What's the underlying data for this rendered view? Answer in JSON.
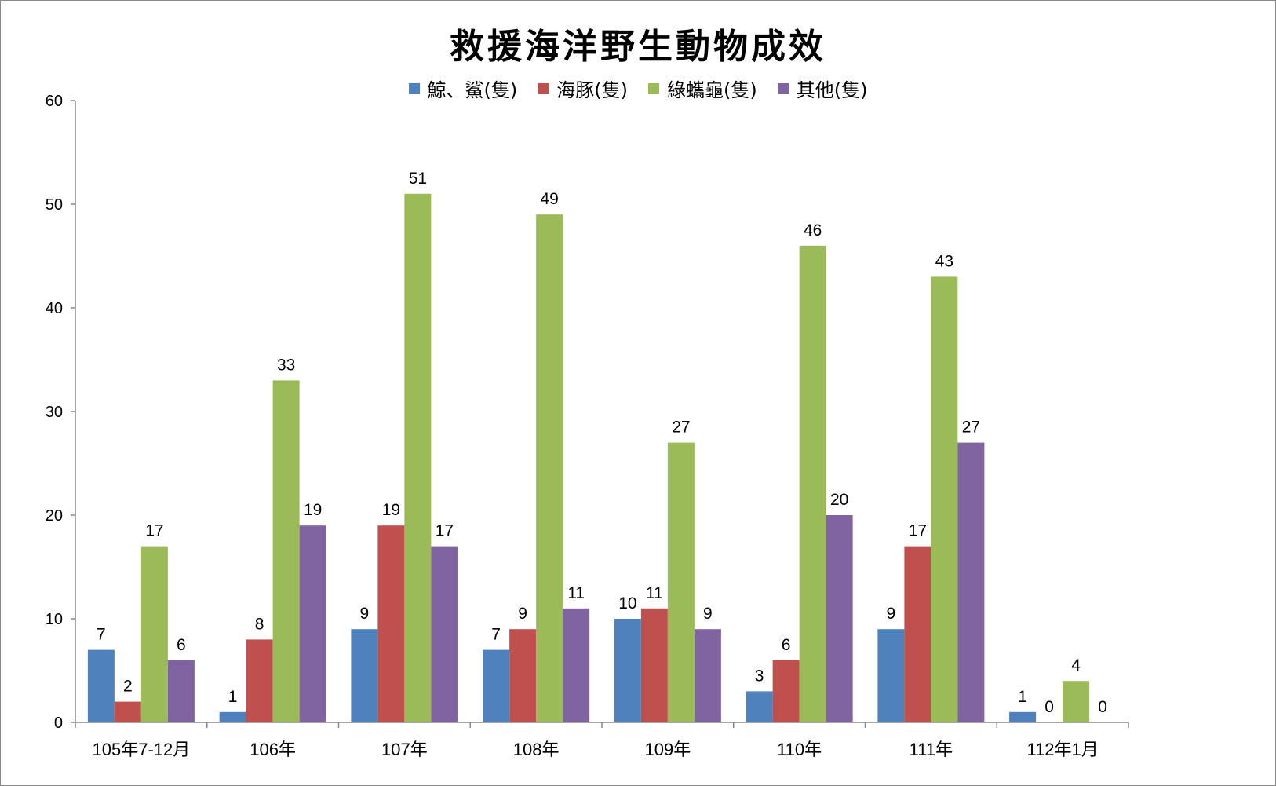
{
  "chart_data": {
    "type": "bar",
    "title": "救援海洋野生動物成效",
    "xlabel": "",
    "ylabel": "",
    "ylim": [
      0,
      60
    ],
    "yticks": [
      0,
      10,
      20,
      30,
      40,
      50,
      60
    ],
    "legend_position": "top",
    "grid": false,
    "categories": [
      "105年7-12月",
      "106年",
      "107年",
      "108年",
      "109年",
      "110年",
      "111年",
      "112年1月"
    ],
    "series": [
      {
        "name": "鯨、鯊(隻)",
        "color": "#4F81BD",
        "values": [
          7,
          1,
          9,
          7,
          10,
          3,
          9,
          1
        ]
      },
      {
        "name": "海豚(隻)",
        "color": "#C0504D",
        "values": [
          2,
          8,
          19,
          9,
          11,
          6,
          17,
          0
        ]
      },
      {
        "name": "綠蠵龜(隻)",
        "color": "#9BBB59",
        "values": [
          17,
          33,
          51,
          49,
          27,
          46,
          43,
          4
        ]
      },
      {
        "name": "其他(隻)",
        "color": "#8064A2",
        "values": [
          6,
          19,
          17,
          11,
          9,
          20,
          27,
          0
        ]
      }
    ]
  }
}
